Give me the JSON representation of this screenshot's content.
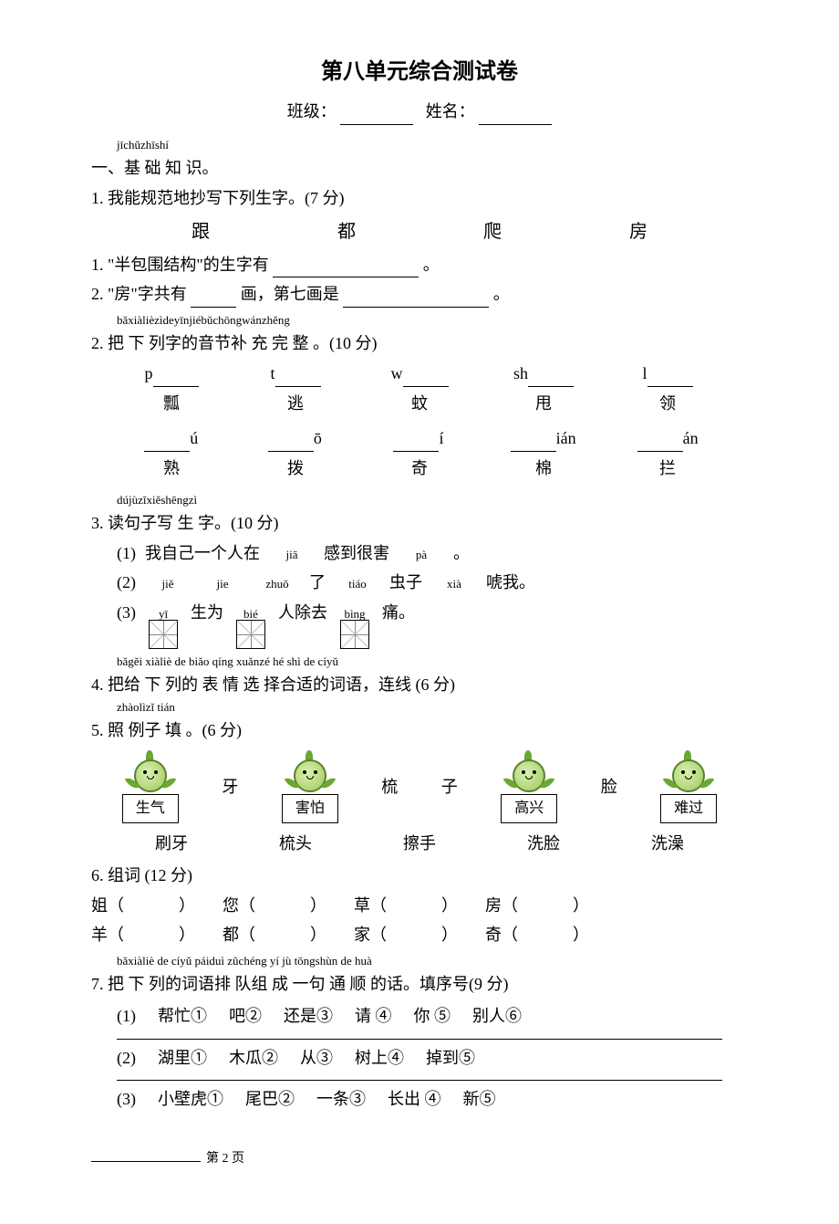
{
  "title": "第八单元综合测试卷",
  "header": {
    "class_label": "班级：",
    "name_label": "姓名："
  },
  "s1": {
    "pinyin": "jīchǔzhīshí",
    "label": "一、基 础 知 识。",
    "q1_label": "1. 我能规范地抄写下列生字。(7 分)",
    "chars": [
      "跟",
      "都",
      "爬",
      "房"
    ],
    "sub1": "1. \"半包围结构\"的生字有",
    "sub1_end": "。",
    "sub2_a": "2. \"房\"字共有",
    "sub2_b": "画，第七画是",
    "sub2_end": "。"
  },
  "s2": {
    "pinyin": "bǎxiàlièzìdeyīnjiébǔchōngwánzhěng",
    "label": "2. 把 下 列字的音节补 充 完 整 。(10 分)",
    "row1_pre": [
      "p",
      "t",
      "w",
      "sh",
      "l"
    ],
    "row1_han": [
      "瓢",
      "逃",
      "蚊",
      "甩",
      "领"
    ],
    "row2_suf": [
      "ú",
      "ō",
      "í",
      "ián",
      "án"
    ],
    "row2_han": [
      "熟",
      "拨",
      "奇",
      "棉",
      "拦"
    ]
  },
  "s3": {
    "pinyin": "dújùzǐxiěshēngzì",
    "label": "3. 读句子写 生 字。(10 分)",
    "l1": {
      "num": "(1)",
      "a": "我自己一个人在",
      "py1": "jiā",
      "b": "感到很害",
      "py2": "pà",
      "end": "。"
    },
    "l2": {
      "num": "(2)",
      "py": [
        "jiě",
        "jie",
        "zhuō",
        "tiáo",
        "xià"
      ],
      "a": "了",
      "b": "虫子",
      "c": "唬我。"
    },
    "l3": {
      "num": "(3)",
      "py": [
        "yī",
        "bié",
        "bìng"
      ],
      "a": "生为",
      "b": "人除去",
      "c": "痛。"
    }
  },
  "s4": {
    "pinyin": "bǎgěi xiàliè de biǎo qíng xuǎnzé hé shì de cíyǔ",
    "label": "4. 把给 下 列的 表 情 选 择合适的词语，连线 (6 分)",
    "pinyin2": "zhàolìzǐ  tián",
    "label2": "5. 照 例子 填 。(6 分)",
    "emotions": [
      "生气",
      "害怕",
      "高兴",
      "难过"
    ],
    "extras": [
      "牙",
      "梳",
      "子",
      "脸"
    ],
    "words": [
      "刷牙",
      "梳头",
      "擦手",
      "洗脸",
      "洗澡"
    ]
  },
  "s6": {
    "label": "6. 组词 (12 分)",
    "rowA": [
      "姐",
      "您",
      "草",
      "房"
    ],
    "rowB": [
      "羊",
      "都",
      "家",
      "奇"
    ]
  },
  "s7": {
    "pinyin": "bǎxiàliè de cíyǔ páiduì zǔchéng yí jù tōngshùn de huà",
    "label": "7. 把 下 列的词语排 队组 成 一句 通 顺 的话。填序号(9 分)",
    "q1": {
      "num": "(1)",
      "items": [
        "帮忙①",
        "吧②",
        "还是③",
        "请 ④",
        "你 ⑤",
        "别人⑥"
      ]
    },
    "q2": {
      "num": "(2)",
      "items": [
        "湖里①",
        "木瓜②",
        "从③",
        "树上④",
        "掉到⑤"
      ]
    },
    "q3": {
      "num": "(3)",
      "items": [
        "小壁虎①",
        "尾巴②",
        "一条③",
        "长出 ④",
        "新⑤"
      ]
    }
  },
  "footer": {
    "page": "第 2 页"
  }
}
